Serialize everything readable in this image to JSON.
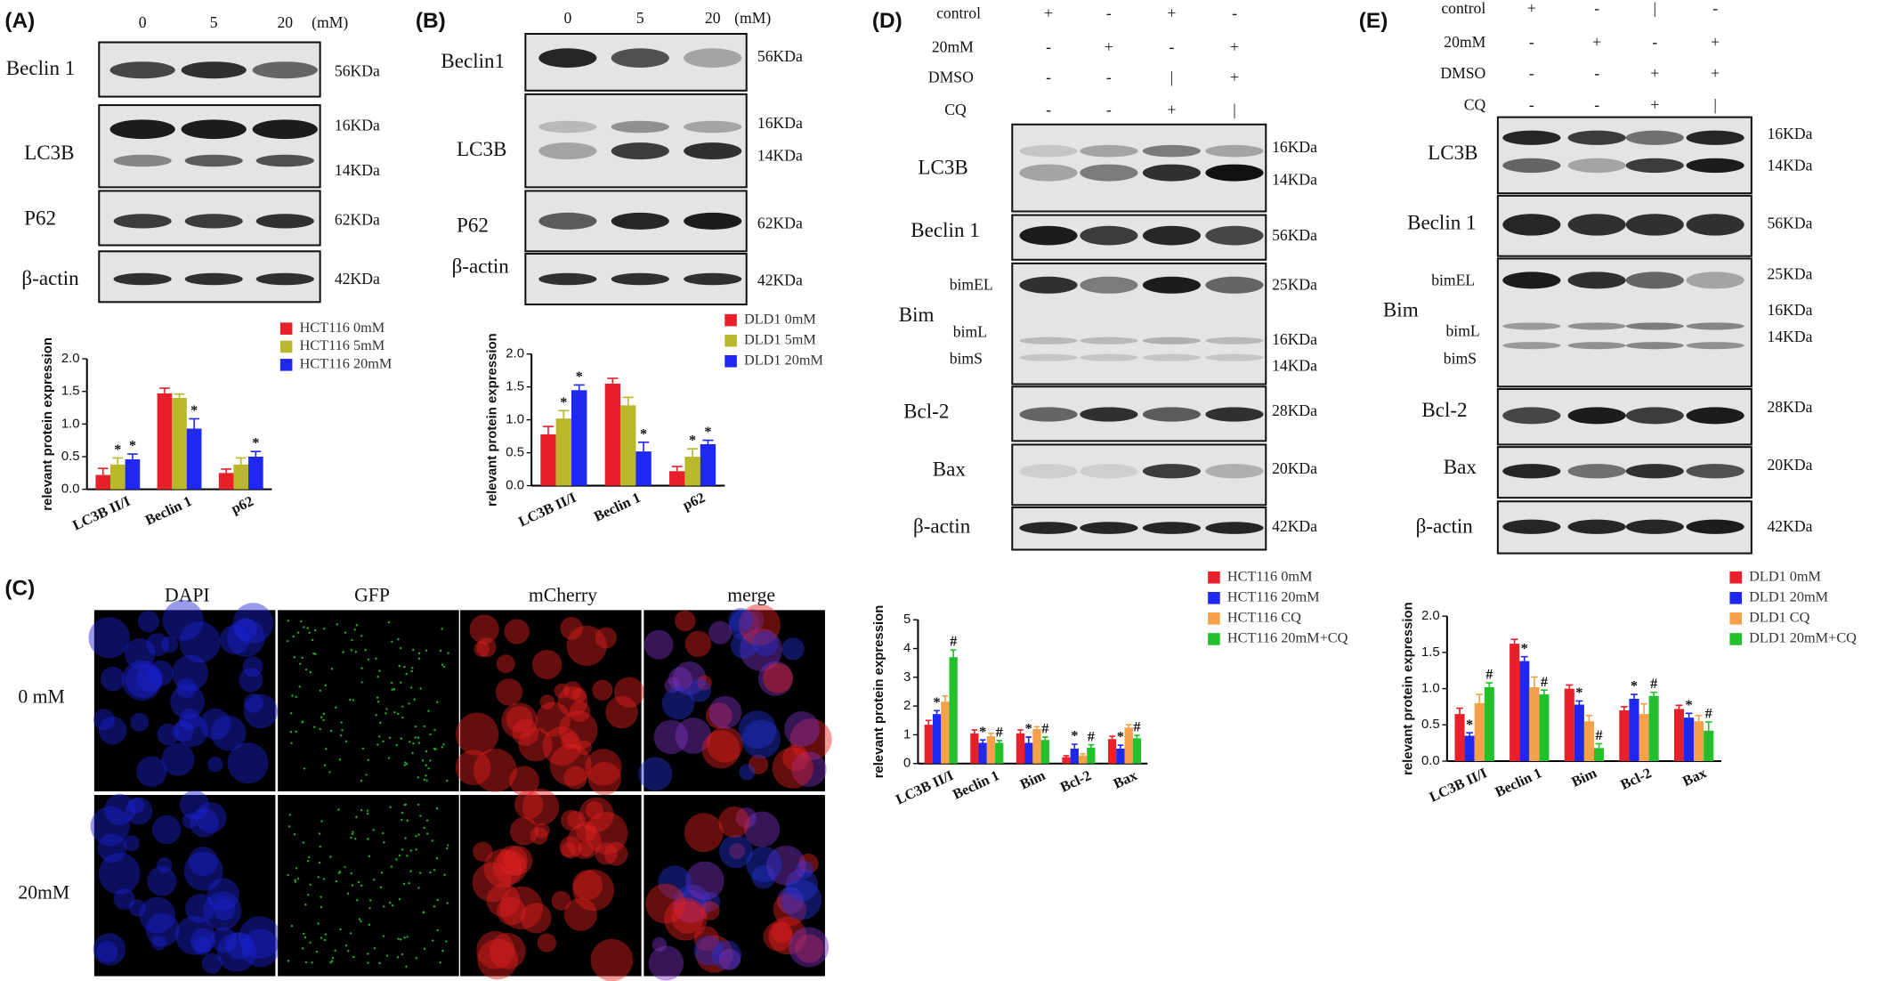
{
  "panels": {
    "A": {
      "label": "(A)",
      "lanes": [
        "0",
        "5",
        "20"
      ],
      "unit": "(mM)",
      "proteins": [
        "Beclin 1",
        "LC3B",
        "P62",
        "β-actin"
      ],
      "sizes": [
        "56KDa",
        "16KDa",
        "14KDa",
        "62KDa",
        "42KDa"
      ]
    },
    "B": {
      "label": "(B)",
      "lanes": [
        "0",
        "5",
        "20"
      ],
      "unit": "(mM)",
      "proteins": [
        "Beclin1",
        "LC3B",
        "P62",
        "β-actin"
      ],
      "sizes": [
        "56KDa",
        "16KDa",
        "14KDa",
        "62KDa",
        "42KDa"
      ]
    },
    "C": {
      "label": "(C)",
      "channels": [
        "DAPI",
        "GFP",
        "mCherry",
        "merge"
      ],
      "rows": [
        "0 mM",
        "20mM"
      ]
    },
    "D": {
      "label": "(D)",
      "conditions": [
        {
          "name": "control",
          "signs": [
            "+",
            "-",
            "+",
            "-"
          ]
        },
        {
          "name": "20mM",
          "signs": [
            "-",
            "+",
            "-",
            "+"
          ]
        },
        {
          "name": "DMSO",
          "signs": [
            "-",
            "-",
            "|",
            "+"
          ]
        },
        {
          "name": "CQ",
          "signs": [
            "-",
            "-",
            "+",
            "|"
          ]
        }
      ],
      "proteins": [
        "LC3B",
        "Beclin 1",
        "Bim",
        "Bcl-2",
        "Bax",
        "β-actin"
      ],
      "bim_forms": [
        "bimEL",
        "bimL",
        "bimS"
      ],
      "sizes": [
        "16KDa",
        "14KDa",
        "56KDa",
        "25KDa",
        "16KDa",
        "14KDa",
        "28KDa",
        "20KDa",
        "42KDa"
      ]
    },
    "E": {
      "label": "(E)",
      "conditions": [
        {
          "name": "control",
          "signs": [
            "+",
            "-",
            "|",
            "-"
          ]
        },
        {
          "name": "20mM",
          "signs": [
            "-",
            "+",
            "-",
            "+"
          ]
        },
        {
          "name": "DMSO",
          "signs": [
            "-",
            "-",
            "+",
            "+"
          ]
        },
        {
          "name": "CQ",
          "signs": [
            "-",
            "-",
            "+",
            "|"
          ]
        }
      ],
      "proteins": [
        "LC3B",
        "Beclin 1",
        "Bim",
        "Bcl-2",
        "Bax",
        "β-actin"
      ],
      "bim_forms": [
        "bimEL",
        "bimL",
        "bimS"
      ],
      "sizes": [
        "16KDa",
        "14KDa",
        "56KDa",
        "25KDa",
        "16KDa",
        "14KDa",
        "28KDa",
        "20KDa",
        "42KDa"
      ]
    }
  },
  "chart_data": [
    {
      "type": "bar",
      "y_label": "relevant protein expression",
      "categories": [
        "LC3B II/I",
        "Beclin 1",
        "p62"
      ],
      "ylim": [
        0,
        2
      ],
      "yticks": [
        {
          "value": 0,
          "label": "0.0"
        },
        0.5,
        {
          "value": 1,
          "label": "1.0"
        },
        1.5,
        {
          "value": 2,
          "label": "2.0"
        }
      ],
      "series": [
        {
          "name": "HCT116 0mM",
          "color": "#e8202a",
          "values": [
            0.22,
            1.47,
            0.25
          ],
          "errors": [
            0.1,
            0.08,
            0.06
          ],
          "annotations": [
            null,
            null,
            null
          ]
        },
        {
          "name": "HCT116 5mM",
          "color": "#b8b82a",
          "values": [
            0.38,
            1.4,
            0.38
          ],
          "errors": [
            0.1,
            0.06,
            0.1
          ],
          "annotations": [
            "*",
            null,
            null
          ]
        },
        {
          "name": "HCT116 20mM",
          "color": "#1e28f0",
          "values": [
            0.46,
            0.93,
            0.5
          ],
          "errors": [
            0.08,
            0.15,
            0.08
          ],
          "annotations": [
            "*",
            "*",
            "*"
          ]
        }
      ]
    },
    {
      "type": "bar",
      "y_label": "relevant protein expression",
      "categories": [
        "LC3B II/I",
        "Beclin 1",
        "p62"
      ],
      "ylim": [
        0,
        2
      ],
      "yticks": [
        {
          "value": 0,
          "label": "0.0"
        },
        0.5,
        {
          "value": 1,
          "label": "1.0"
        },
        1.5,
        {
          "value": 2,
          "label": "2.0"
        }
      ],
      "series": [
        {
          "name": "DLD1 0mM",
          "color": "#e8202a",
          "values": [
            0.78,
            1.55,
            0.22
          ],
          "errors": [
            0.12,
            0.08,
            0.07
          ],
          "annotations": [
            null,
            null,
            null
          ]
        },
        {
          "name": "DLD1 5mM",
          "color": "#b8b82a",
          "values": [
            1.02,
            1.22,
            0.44
          ],
          "errors": [
            0.12,
            0.12,
            0.12
          ],
          "annotations": [
            "*",
            null,
            "*"
          ]
        },
        {
          "name": "DLD1 20mM",
          "color": "#1e28f0",
          "values": [
            1.45,
            0.52,
            0.63
          ],
          "errors": [
            0.08,
            0.14,
            0.06
          ],
          "annotations": [
            "*",
            "*",
            "*"
          ]
        }
      ]
    },
    {
      "type": "bar",
      "y_label": "relevant protein expression",
      "categories": [
        "LC3B II/I",
        "Beclin 1",
        "Bim",
        "Bcl-2",
        "Bax"
      ],
      "ylim": [
        0,
        5
      ],
      "yticks": [
        0,
        1,
        2,
        3,
        4,
        5
      ],
      "series": [
        {
          "name": "HCT116 0mM",
          "color": "#e8202a",
          "values": [
            1.35,
            1.05,
            1.05,
            0.22,
            0.85
          ],
          "errors": [
            0.15,
            0.12,
            0.12,
            0.05,
            0.1
          ],
          "annotations": [
            null,
            null,
            null,
            null,
            null
          ]
        },
        {
          "name": "HCT116 20mM",
          "color": "#1e28f0",
          "values": [
            1.72,
            0.72,
            0.72,
            0.52,
            0.52
          ],
          "errors": [
            0.12,
            0.1,
            0.2,
            0.15,
            0.12
          ],
          "annotations": [
            "*",
            "*",
            "*",
            "*",
            "*"
          ]
        },
        {
          "name": "HCT116 CQ",
          "color": "#f5a04a",
          "values": [
            2.15,
            0.95,
            1.2,
            0.28,
            1.25
          ],
          "errors": [
            0.2,
            0.1,
            0.08,
            0.06,
            0.1
          ],
          "annotations": [
            null,
            null,
            null,
            null,
            null
          ]
        },
        {
          "name": "HCT116 20mM+CQ",
          "color": "#22c02a",
          "values": [
            3.7,
            0.72,
            0.82,
            0.55,
            0.88
          ],
          "errors": [
            0.25,
            0.08,
            0.1,
            0.1,
            0.1
          ],
          "annotations": [
            "#",
            "#",
            "#",
            "#",
            "#"
          ]
        }
      ]
    },
    {
      "type": "bar",
      "y_label": "relevant protein expression",
      "categories": [
        "LC3B II/I",
        "Beclin 1",
        "Bim",
        "Bcl-2",
        "Bax"
      ],
      "ylim": [
        0,
        2
      ],
      "yticks": [
        {
          "value": 0,
          "label": "0.0"
        },
        0.5,
        {
          "value": 1,
          "label": "1.0"
        },
        1.5,
        {
          "value": 2,
          "label": "2.0"
        }
      ],
      "series": [
        {
          "name": "DLD1 0mM",
          "color": "#e8202a",
          "values": [
            0.65,
            1.62,
            1.0,
            0.7,
            0.72
          ],
          "errors": [
            0.08,
            0.06,
            0.05,
            0.05,
            0.05
          ],
          "annotations": [
            null,
            null,
            null,
            null,
            null
          ]
        },
        {
          "name": "DLD1 20mM",
          "color": "#1e28f0",
          "values": [
            0.35,
            1.38,
            0.78,
            0.86,
            0.6
          ],
          "errors": [
            0.04,
            0.06,
            0.05,
            0.06,
            0.06
          ],
          "annotations": [
            "*",
            "*",
            "*",
            "*",
            "*"
          ]
        },
        {
          "name": "DLD1 CQ",
          "color": "#f5a04a",
          "values": [
            0.8,
            1.02,
            0.55,
            0.65,
            0.55
          ],
          "errors": [
            0.12,
            0.14,
            0.08,
            0.14,
            0.08
          ],
          "annotations": [
            null,
            null,
            null,
            null,
            null
          ]
        },
        {
          "name": "DLD1 20mM+CQ",
          "color": "#22c02a",
          "values": [
            1.02,
            0.92,
            0.18,
            0.9,
            0.42
          ],
          "errors": [
            0.06,
            0.06,
            0.06,
            0.05,
            0.12
          ],
          "annotations": [
            "#",
            "#",
            "#",
            "#",
            "#"
          ]
        }
      ]
    }
  ]
}
